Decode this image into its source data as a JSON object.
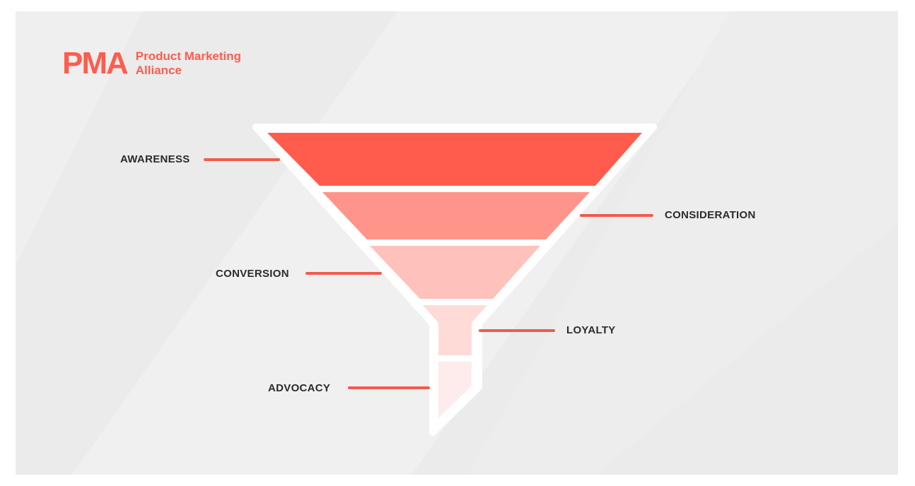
{
  "logo": {
    "mark": "PMA",
    "line1": "Product Marketing",
    "line2": "Alliance"
  },
  "funnel": {
    "stages": [
      {
        "label": "AWARENESS",
        "color": "#ff5c4d"
      },
      {
        "label": "CONSIDERATION",
        "color": "#ff958a"
      },
      {
        "label": "CONVERSION",
        "color": "#ffc1bb"
      },
      {
        "label": "LOYALTY",
        "color": "#ffdbd7"
      },
      {
        "label": "ADVOCACY",
        "color": "#fdeceb"
      }
    ]
  },
  "colors": {
    "accent": "#ff5c4d",
    "leader": "#f15b4d",
    "background": "#ebebeb",
    "label_text": "#2b2b2b"
  }
}
